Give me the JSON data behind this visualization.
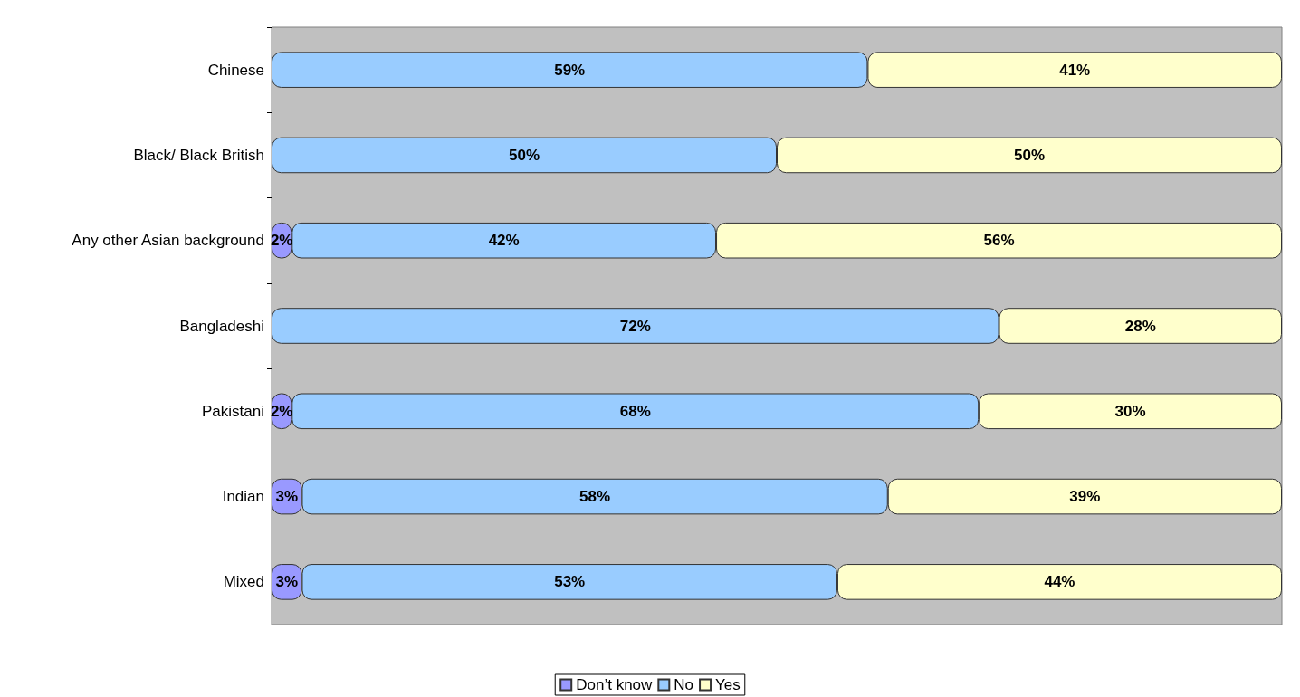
{
  "chart_data": {
    "type": "bar",
    "orientation": "horizontal",
    "stacked": true,
    "categories": [
      "Chinese",
      "Black/ Black British",
      "Any other Asian background",
      "Bangladeshi",
      "Pakistani",
      "Indian",
      "Mixed"
    ],
    "series": [
      {
        "name": "Don’t know",
        "color": "#9999ff",
        "values": [
          null,
          null,
          2,
          null,
          2,
          3,
          3
        ],
        "value_labels": [
          null,
          null,
          "2%",
          null,
          "2%",
          "3%",
          "3%"
        ]
      },
      {
        "name": "No",
        "color": "#99ccff",
        "values": [
          59,
          50,
          42,
          72,
          68,
          58,
          53
        ],
        "value_labels": [
          "59%",
          "50%",
          "42%",
          "72%",
          "68%",
          "58%",
          "53%"
        ]
      },
      {
        "name": "Yes",
        "color": "#ffffcc",
        "values": [
          41,
          50,
          56,
          28,
          30,
          39,
          44
        ],
        "value_labels": [
          "41%",
          "50%",
          "56%",
          "28%",
          "30%",
          "39%",
          "44%"
        ]
      }
    ],
    "legend": "bottom",
    "grid": false,
    "tick_labels": "y"
  }
}
